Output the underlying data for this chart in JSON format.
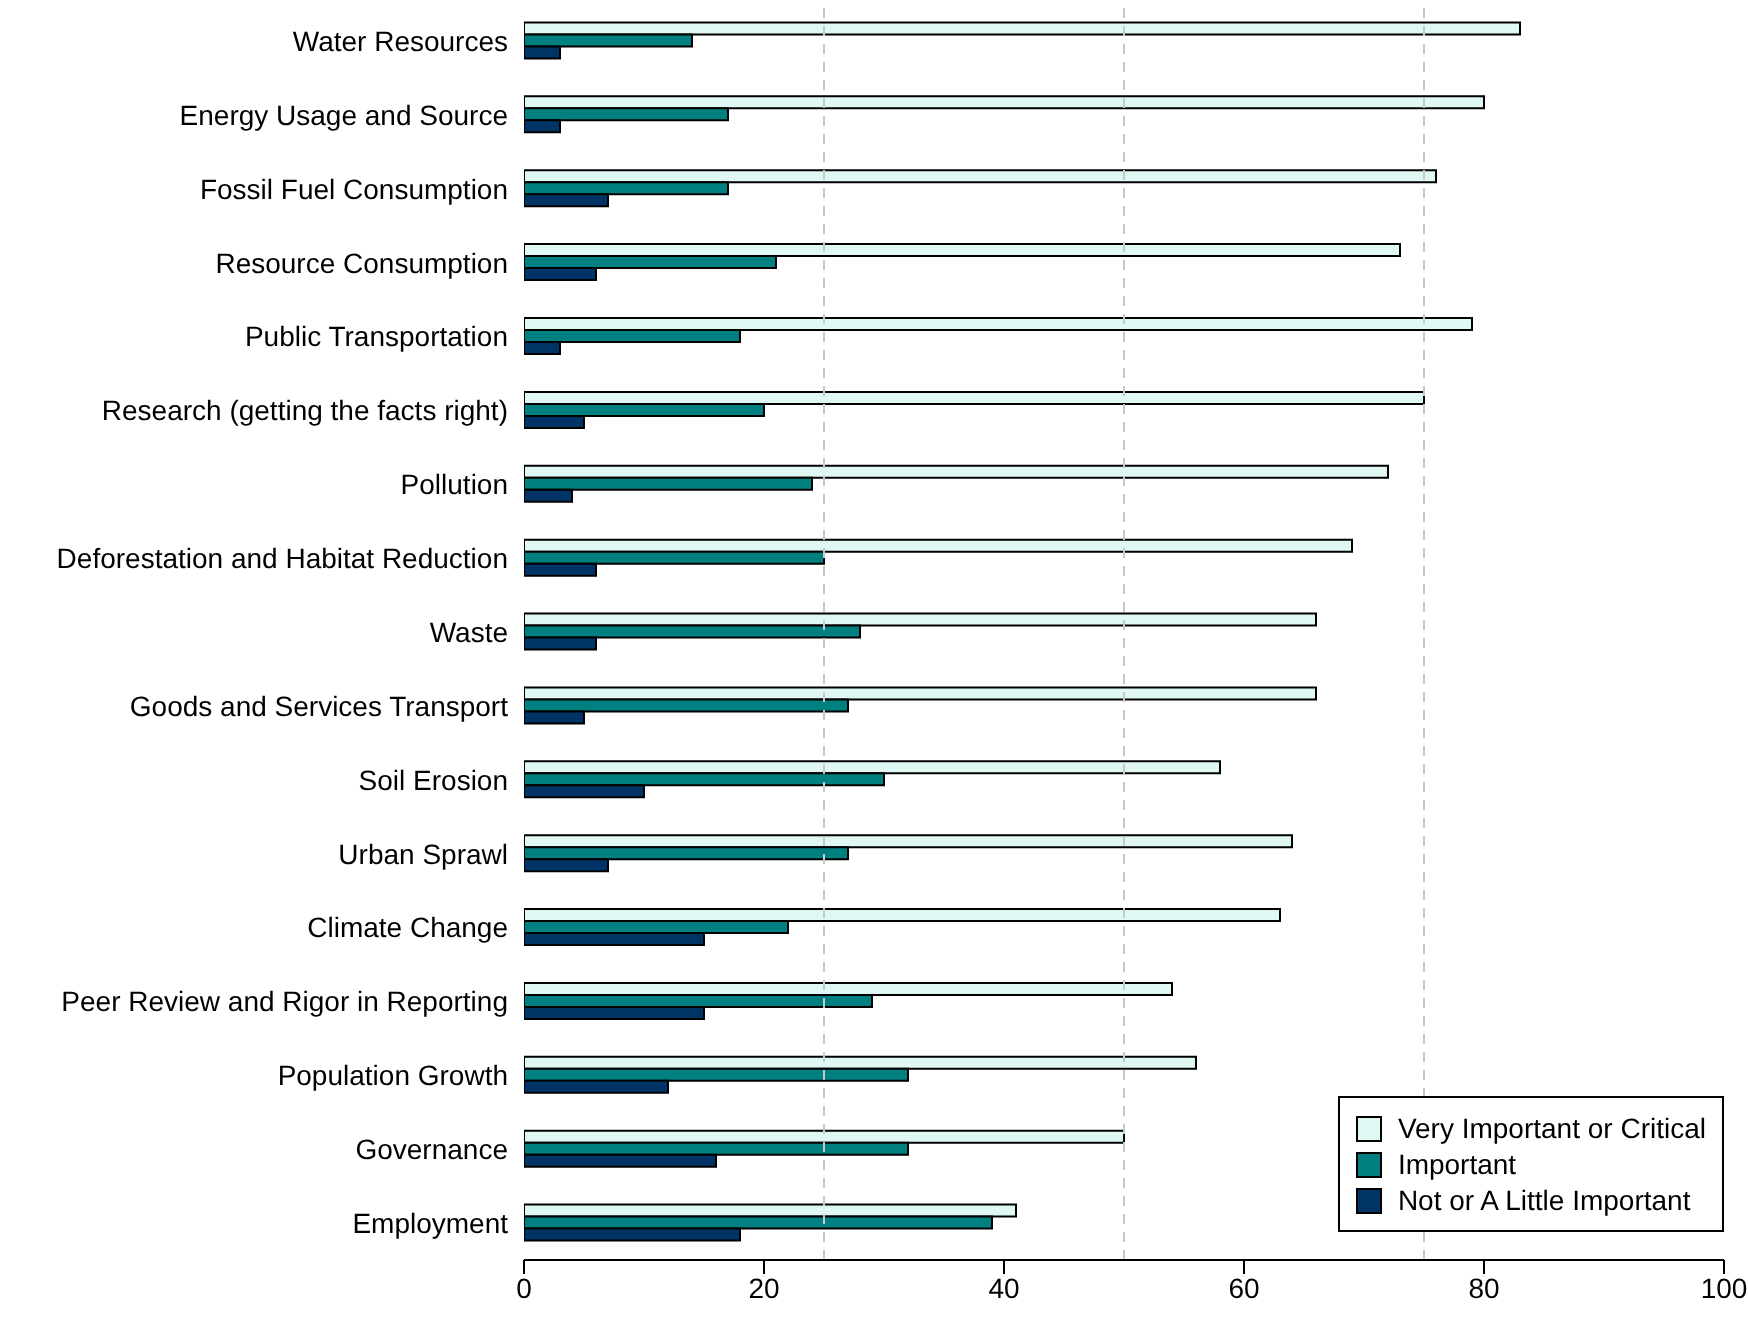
{
  "chart_data": {
    "type": "bar",
    "orientation": "horizontal",
    "categories": [
      "Water Resources",
      "Energy Usage and Source",
      "Fossil Fuel Consumption",
      "Resource Consumption",
      "Public Transportation",
      "Research (getting the facts right)",
      "Pollution",
      "Deforestation and Habitat Reduction",
      "Waste",
      "Goods and Services Transport",
      "Soil Erosion",
      "Urban Sprawl",
      "Climate Change",
      "Peer Review and Rigor in Reporting",
      "Population Growth",
      "Governance",
      "Employment"
    ],
    "series": [
      {
        "name": "Very Important or Critical",
        "color": "#e0f8f4",
        "values": [
          83,
          80,
          76,
          73,
          79,
          75,
          72,
          69,
          66,
          66,
          58,
          64,
          63,
          54,
          56,
          50,
          41
        ]
      },
      {
        "name": "Important",
        "color": "#008080",
        "values": [
          14,
          17,
          17,
          21,
          18,
          20,
          24,
          25,
          28,
          27,
          30,
          27,
          22,
          29,
          32,
          32,
          39
        ]
      },
      {
        "name": "Not or A Little Important",
        "color": "#003366",
        "values": [
          3,
          3,
          7,
          6,
          3,
          5,
          4,
          6,
          6,
          5,
          10,
          7,
          15,
          15,
          12,
          16,
          18
        ]
      }
    ],
    "xlim": [
      0,
      100
    ],
    "xticks": [
      0,
      20,
      40,
      60,
      80,
      100
    ],
    "ref_lines": [
      {
        "axis": "x",
        "value": 25,
        "color": "#c8c8c8",
        "line_style": "dashed"
      },
      {
        "axis": "x",
        "value": 50,
        "color": "#c8c8c8",
        "line_style": "dashed"
      },
      {
        "axis": "x",
        "value": 75,
        "color": "#c8c8c8",
        "line_style": "dashed"
      }
    ],
    "grid": false,
    "legend": "bottom right"
  }
}
